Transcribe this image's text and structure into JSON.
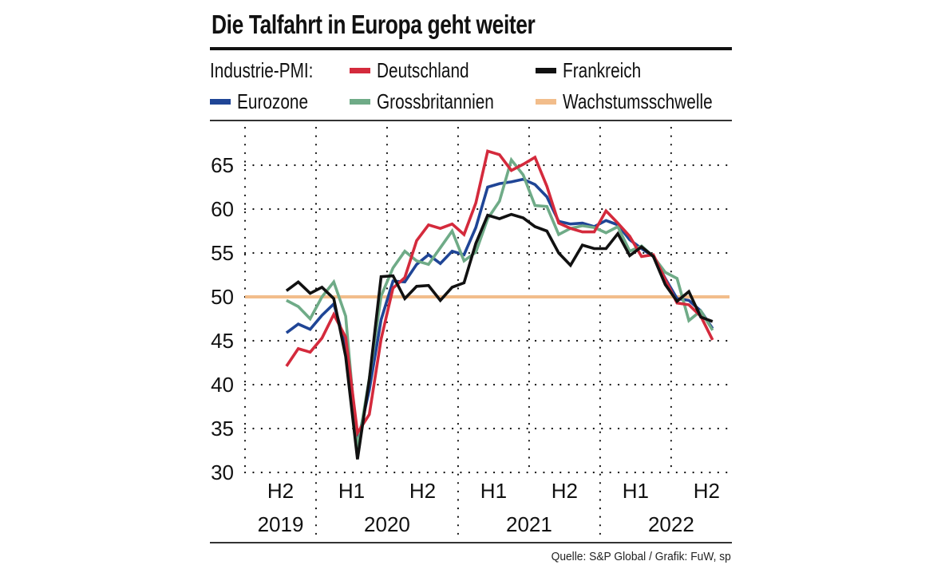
{
  "title": "Die Talfahrt in Europa geht weiter",
  "legend": {
    "prefix": "Industrie-PMI:",
    "items": [
      {
        "key": "de",
        "label": "Deutschland",
        "color": "#d42a3c"
      },
      {
        "key": "fr",
        "label": "Frankreich",
        "color": "#111111"
      },
      {
        "key": "ez",
        "label": "Eurozone",
        "color": "#1f4596"
      },
      {
        "key": "uk",
        "label": "Grossbritannien",
        "color": "#6fab87"
      },
      {
        "key": "th",
        "label": "Wachstumsschwelle",
        "color": "#f2bd8b"
      }
    ]
  },
  "source": "Quelle: S&P Global / Grafik: FuW, sp",
  "chart_data": {
    "type": "line",
    "title": "Die Talfahrt in Europa geht weiter",
    "xlabel": "",
    "ylabel": "Industrie-PMI",
    "ylim": [
      30,
      68
    ],
    "yticks": [
      30,
      35,
      40,
      45,
      50,
      55,
      60,
      65
    ],
    "grid": true,
    "legend_position": "top",
    "x_range_months": [
      "2019-07",
      "2022-12"
    ],
    "x_start": "2019-10",
    "x_end": "2022-10",
    "x": [
      "2019-10",
      "2019-11",
      "2019-12",
      "2020-01",
      "2020-02",
      "2020-03",
      "2020-04",
      "2020-05",
      "2020-06",
      "2020-07",
      "2020-08",
      "2020-09",
      "2020-10",
      "2020-11",
      "2020-12",
      "2021-01",
      "2021-02",
      "2021-03",
      "2021-04",
      "2021-05",
      "2021-06",
      "2021-07",
      "2021-08",
      "2021-09",
      "2021-10",
      "2021-11",
      "2021-12",
      "2022-01",
      "2022-02",
      "2022-03",
      "2022-04",
      "2022-05",
      "2022-06",
      "2022-07",
      "2022-08",
      "2022-09",
      "2022-10"
    ],
    "half_year_ticks": [
      {
        "label": "H2",
        "year": "2019"
      },
      {
        "label": "H1",
        "year": "2020"
      },
      {
        "label": "H2",
        "year": "2020"
      },
      {
        "label": "H1",
        "year": "2021"
      },
      {
        "label": "H2",
        "year": "2021"
      },
      {
        "label": "H1",
        "year": "2022"
      },
      {
        "label": "H2",
        "year": "2022"
      }
    ],
    "year_labels": [
      "2019",
      "2020",
      "2021",
      "2022"
    ],
    "threshold": {
      "name": "Wachstumsschwelle",
      "value": 50,
      "color": "#f2bd8b"
    },
    "series": [
      {
        "name": "Eurozone",
        "color": "#1f4596",
        "values": [
          45.9,
          46.9,
          46.3,
          47.9,
          49.2,
          44.5,
          33.4,
          39.4,
          47.4,
          51.8,
          51.7,
          53.7,
          54.8,
          53.8,
          55.2,
          54.8,
          57.9,
          62.5,
          62.9,
          63.1,
          63.4,
          62.8,
          61.4,
          58.6,
          58.3,
          58.4,
          58.0,
          58.7,
          58.2,
          56.5,
          55.5,
          54.6,
          52.1,
          49.8,
          49.6,
          48.4,
          46.4
        ]
      },
      {
        "name": "Grossbritannien",
        "color": "#6fab87",
        "values": [
          49.6,
          48.9,
          47.5,
          50.0,
          51.7,
          47.8,
          32.6,
          40.7,
          50.1,
          53.3,
          55.2,
          54.1,
          53.7,
          55.6,
          57.5,
          54.1,
          55.1,
          58.9,
          60.9,
          65.6,
          63.9,
          60.4,
          60.3,
          57.1,
          57.8,
          58.1,
          57.9,
          57.3,
          58.0,
          55.2,
          55.8,
          54.6,
          52.8,
          52.1,
          47.3,
          48.4,
          46.2
        ]
      },
      {
        "name": "Deutschland",
        "color": "#d42a3c",
        "values": [
          42.1,
          44.1,
          43.7,
          45.3,
          48.0,
          45.4,
          34.5,
          36.6,
          45.2,
          51.0,
          52.2,
          56.4,
          58.2,
          57.8,
          58.3,
          57.1,
          60.7,
          66.6,
          66.2,
          64.4,
          65.1,
          65.9,
          62.6,
          58.4,
          57.8,
          57.4,
          57.4,
          59.8,
          58.4,
          56.9,
          54.6,
          54.8,
          52.0,
          49.3,
          49.1,
          47.8,
          45.1
        ]
      },
      {
        "name": "Frankreich",
        "color": "#111111",
        "values": [
          50.7,
          51.7,
          50.4,
          51.1,
          49.8,
          43.2,
          31.5,
          40.6,
          52.3,
          52.4,
          49.8,
          51.2,
          51.3,
          49.6,
          51.1,
          51.6,
          56.1,
          59.3,
          58.9,
          59.4,
          59.0,
          58.0,
          57.5,
          55.0,
          53.6,
          55.9,
          55.5,
          55.5,
          57.2,
          54.7,
          55.7,
          54.6,
          51.4,
          49.5,
          50.6,
          47.7,
          47.2
        ]
      }
    ]
  }
}
